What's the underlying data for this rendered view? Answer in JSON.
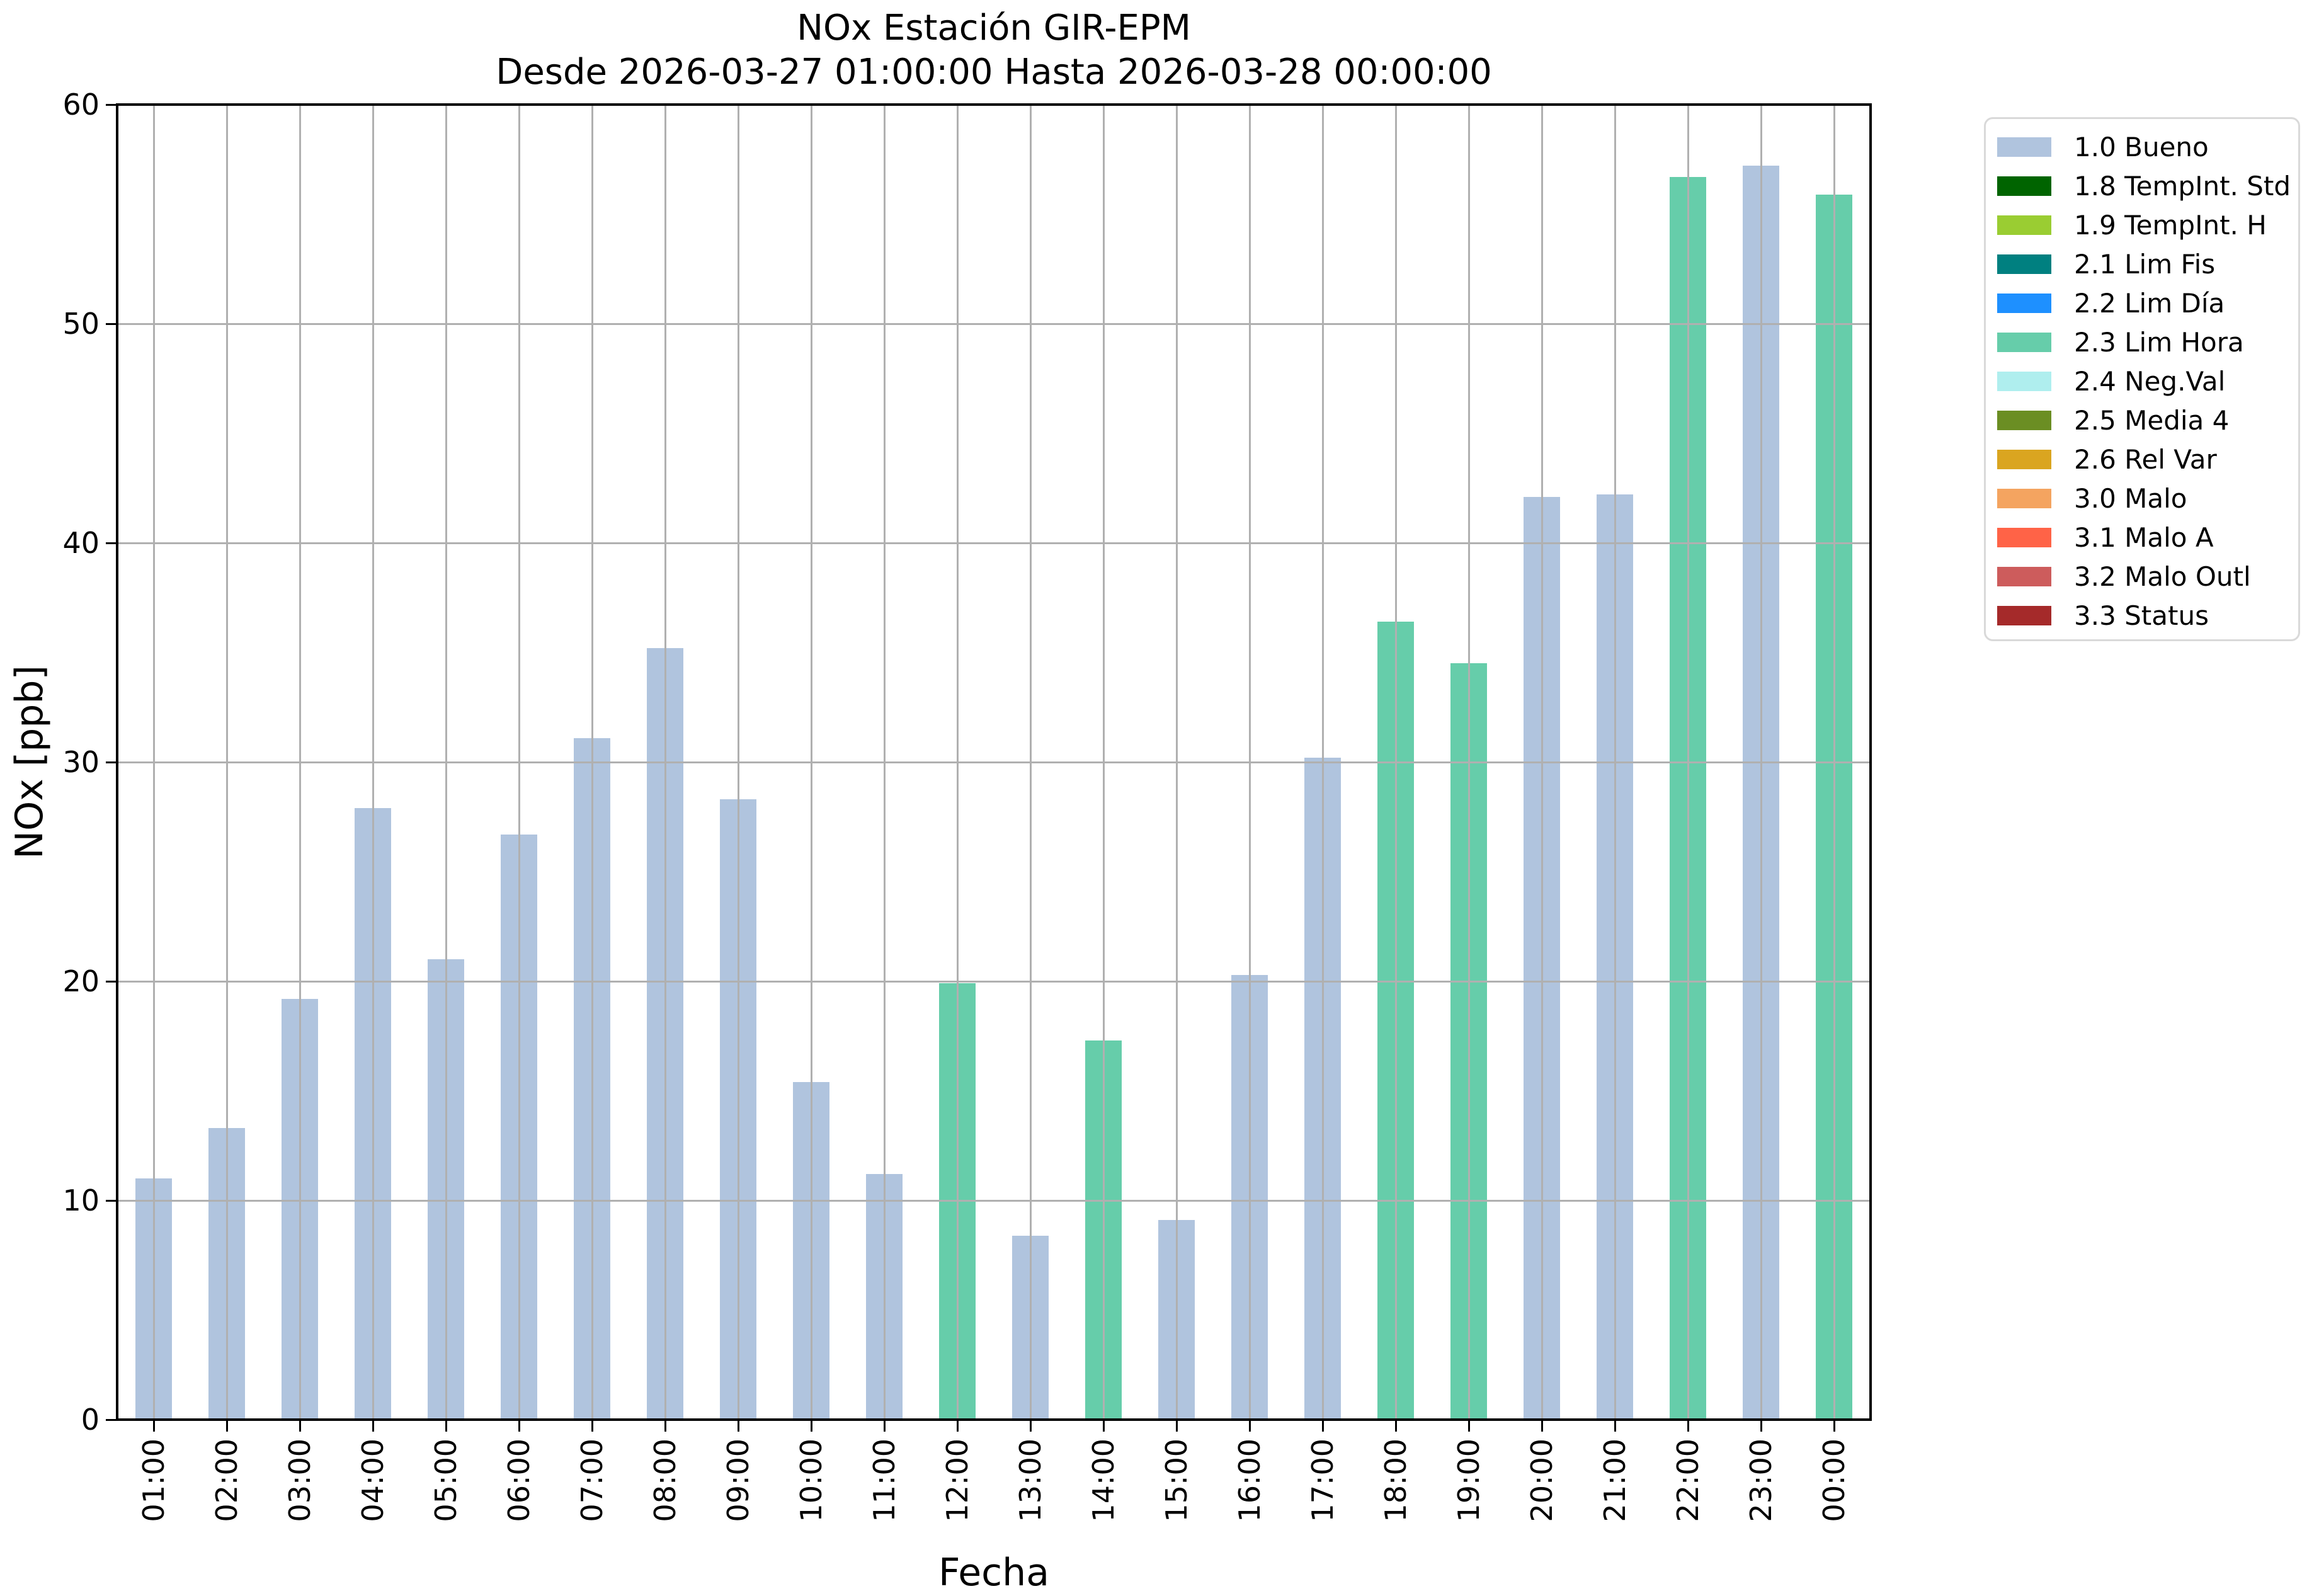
{
  "chart_data": {
    "type": "bar",
    "title": "NOx Estación GIR-EPM",
    "subtitle": "Desde 2026-03-27 01:00:00 Hasta 2026-03-28 00:00:00",
    "xlabel": "Fecha",
    "ylabel": "NOx [ppb]",
    "ylim": [
      0,
      60
    ],
    "yticks": [
      0,
      10,
      20,
      30,
      40,
      50,
      60
    ],
    "grid": "both axes, gray, drawn above bars",
    "legend_position": "outside upper right",
    "categories": [
      "01:00",
      "02:00",
      "03:00",
      "04:00",
      "05:00",
      "06:00",
      "07:00",
      "08:00",
      "09:00",
      "10:00",
      "11:00",
      "12:00",
      "13:00",
      "14:00",
      "15:00",
      "16:00",
      "17:00",
      "18:00",
      "19:00",
      "20:00",
      "21:00",
      "22:00",
      "23:00",
      "00:00"
    ],
    "values": [
      11.0,
      13.3,
      19.2,
      27.9,
      21.0,
      26.7,
      31.1,
      35.2,
      28.3,
      15.4,
      11.2,
      19.9,
      8.4,
      17.3,
      9.1,
      20.3,
      30.2,
      36.4,
      34.5,
      42.1,
      42.2,
      56.7,
      57.2,
      55.9
    ],
    "flags": [
      "1.0 Bueno",
      "1.0 Bueno",
      "1.0 Bueno",
      "1.0 Bueno",
      "1.0 Bueno",
      "1.0 Bueno",
      "1.0 Bueno",
      "1.0 Bueno",
      "1.0 Bueno",
      "1.0 Bueno",
      "1.0 Bueno",
      "2.3 Lim Hora",
      "1.0 Bueno",
      "2.3 Lim Hora",
      "1.0 Bueno",
      "1.0 Bueno",
      "1.0 Bueno",
      "2.3 Lim Hora",
      "2.3 Lim Hora",
      "1.0 Bueno",
      "1.0 Bueno",
      "2.3 Lim Hora",
      "1.0 Bueno",
      "2.3 Lim Hora"
    ],
    "legend": [
      {
        "label": "1.0 Bueno",
        "color": "#b0c4de"
      },
      {
        "label": "1.8 TempInt. Std",
        "color": "#006400"
      },
      {
        "label": "1.9 TempInt. H",
        "color": "#9acd32"
      },
      {
        "label": "2.1 Lim Fis",
        "color": "#008080"
      },
      {
        "label": "2.2 Lim Día",
        "color": "#1e90ff"
      },
      {
        "label": "2.3 Lim Hora",
        "color": "#66cdaa"
      },
      {
        "label": "2.4 Neg.Val",
        "color": "#afeeee"
      },
      {
        "label": "2.5 Media 4",
        "color": "#6b8e23"
      },
      {
        "label": "2.6 Rel Var",
        "color": "#daa520"
      },
      {
        "label": "3.0 Malo",
        "color": "#f4a460"
      },
      {
        "label": "3.1 Malo A",
        "color": "#ff6347"
      },
      {
        "label": "3.2 Malo Outl",
        "color": "#cd5c5c"
      },
      {
        "label": "3.3 Status",
        "color": "#a52a2a"
      }
    ]
  }
}
